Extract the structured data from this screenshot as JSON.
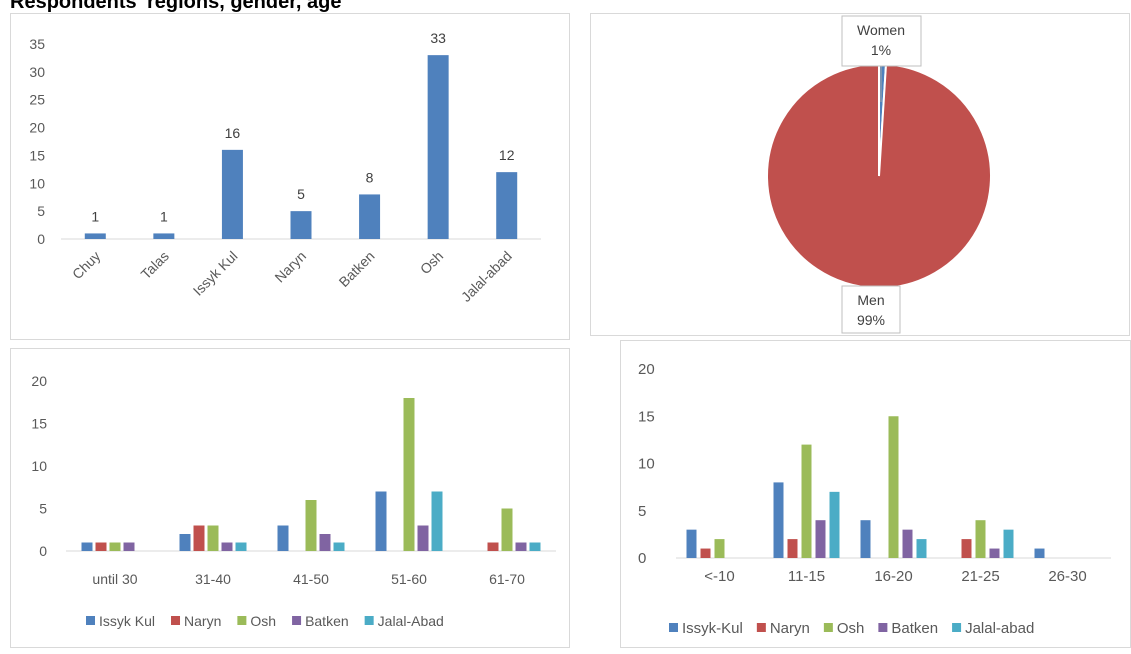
{
  "heading": "Respondents' regions, gender, age",
  "chart_data": [
    {
      "type": "bar",
      "categories": [
        "Chuy",
        "Talas",
        "Issyk Kul",
        "Naryn",
        "Batken",
        "Osh",
        "Jalal-abad"
      ],
      "values": [
        1,
        1,
        16,
        5,
        8,
        33,
        12
      ],
      "ylim": [
        0,
        35
      ],
      "yticks": [
        0,
        5,
        10,
        15,
        20,
        25,
        30,
        35
      ],
      "data_labels": true,
      "grid": false,
      "color": "#4f81bd"
    },
    {
      "type": "pie",
      "slices": [
        {
          "label": "Women",
          "pct_label": "1%",
          "value": 1,
          "color": "#4f81bd"
        },
        {
          "label": "Men",
          "pct_label": "99%",
          "value": 99,
          "color": "#c0504d"
        }
      ]
    },
    {
      "type": "bar",
      "categories": [
        "until 30",
        "31-40",
        "41-50",
        "51-60",
        "61-70"
      ],
      "series": [
        {
          "name": "Issyk Kul",
          "values": [
            1,
            2,
            3,
            7,
            0
          ],
          "color": "#4f81bd"
        },
        {
          "name": "Naryn",
          "values": [
            1,
            3,
            0,
            0,
            1
          ],
          "color": "#c0504d"
        },
        {
          "name": "Osh",
          "values": [
            1,
            3,
            6,
            18,
            5
          ],
          "color": "#9bbb59"
        },
        {
          "name": "Batken",
          "values": [
            1,
            1,
            2,
            3,
            1
          ],
          "color": "#8064a2"
        },
        {
          "name": "Jalal-Abad",
          "values": [
            0,
            1,
            1,
            7,
            1
          ],
          "color": "#4bacc6"
        }
      ],
      "ylim": [
        0,
        20
      ],
      "yticks": [
        0,
        5,
        10,
        15,
        20
      ],
      "legend": "bottom",
      "grid": false
    },
    {
      "type": "bar",
      "categories": [
        "<-10",
        "11-15",
        "16-20",
        "21-25",
        "26-30"
      ],
      "series": [
        {
          "name": "Issyk-Kul",
          "values": [
            3,
            8,
            4,
            0,
            1
          ],
          "color": "#4f81bd"
        },
        {
          "name": "Naryn",
          "values": [
            1,
            2,
            0,
            2,
            0
          ],
          "color": "#c0504d"
        },
        {
          "name": "Osh",
          "values": [
            2,
            12,
            15,
            4,
            0
          ],
          "color": "#9bbb59"
        },
        {
          "name": "Batken",
          "values": [
            0,
            4,
            3,
            1,
            0
          ],
          "color": "#8064a2"
        },
        {
          "name": "Jalal-abad",
          "values": [
            0,
            7,
            2,
            3,
            0
          ],
          "color": "#4bacc6"
        }
      ],
      "ylim": [
        0,
        20
      ],
      "yticks": [
        0,
        5,
        10,
        15,
        20
      ],
      "legend": "bottom",
      "grid": false
    }
  ]
}
